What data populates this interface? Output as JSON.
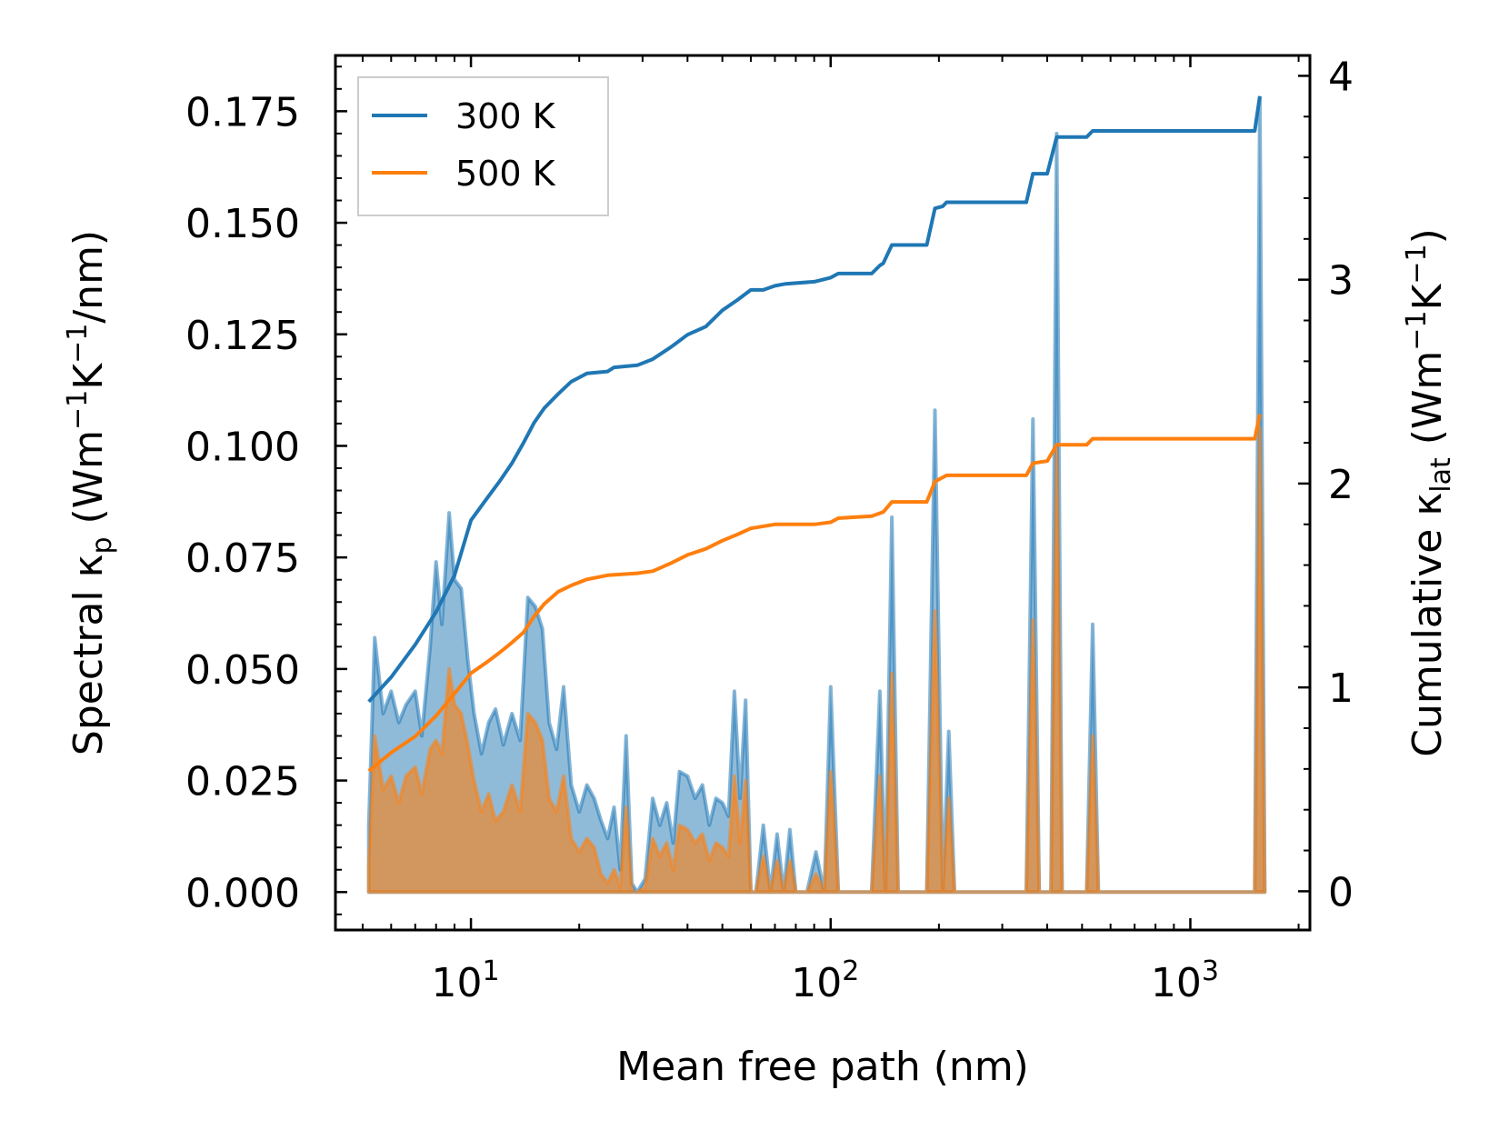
{
  "chart_data": {
    "type": "area+line (dual y-axis, log x)",
    "xlabel": "Mean free path (nm)",
    "xscale": "log",
    "xlim": [
      4.2,
      2150
    ],
    "x_ticks": [
      {
        "value": 10,
        "base": "10",
        "exp": "1"
      },
      {
        "value": 100,
        "base": "10",
        "exp": "2"
      },
      {
        "value": 1000,
        "base": "10",
        "exp": "3"
      }
    ],
    "ylabel_left": {
      "main": "Spectral κ",
      "sub": "p",
      "unit_a": " (Wm",
      "sup_a": "−1",
      "unit_b": "K",
      "sup_b": "−1",
      "unit_c": "/nm)"
    },
    "ylim_left": [
      -0.0085,
      0.1875
    ],
    "yticks_left": [
      "0.000",
      "0.025",
      "0.050",
      "0.075",
      "0.100",
      "0.125",
      "0.150",
      "0.175"
    ],
    "ylabel_right": {
      "main": "Cumulative κ",
      "sub": "lat",
      "unit_a": " (Wm",
      "sup_a": "−1",
      "unit_b": "K",
      "sup_b": "−1",
      "unit_c": ")"
    },
    "ylim_right": [
      -0.19,
      4.1
    ],
    "yticks_right": [
      "0",
      "1",
      "2",
      "3",
      "4"
    ],
    "legend": [
      {
        "label": "300 K",
        "color": "#1f77b4"
      },
      {
        "label": "500 K",
        "color": "#ff7f0e"
      }
    ],
    "legend_position": "top-left",
    "series": [
      {
        "name": "300 K",
        "color": "#1f77b4",
        "spectral": [
          [
            5.2,
            0.015
          ],
          [
            5.4,
            0.057
          ],
          [
            5.7,
            0.04
          ],
          [
            6.0,
            0.045
          ],
          [
            6.3,
            0.038
          ],
          [
            6.6,
            0.042
          ],
          [
            7.0,
            0.045
          ],
          [
            7.3,
            0.035
          ],
          [
            7.7,
            0.055
          ],
          [
            8.0,
            0.074
          ],
          [
            8.3,
            0.06
          ],
          [
            8.7,
            0.085
          ],
          [
            9.0,
            0.07
          ],
          [
            9.4,
            0.068
          ],
          [
            9.8,
            0.052
          ],
          [
            10.2,
            0.04
          ],
          [
            10.7,
            0.031
          ],
          [
            11.2,
            0.038
          ],
          [
            11.7,
            0.041
          ],
          [
            12.3,
            0.033
          ],
          [
            13.0,
            0.04
          ],
          [
            13.7,
            0.034
          ],
          [
            14.4,
            0.066
          ],
          [
            15.1,
            0.064
          ],
          [
            15.8,
            0.059
          ],
          [
            16.5,
            0.038
          ],
          [
            17.3,
            0.032
          ],
          [
            18.1,
            0.046
          ],
          [
            19.0,
            0.024
          ],
          [
            20.0,
            0.018
          ],
          [
            21.0,
            0.024
          ],
          [
            22.0,
            0.021
          ],
          [
            23.0,
            0.016
          ],
          [
            24.0,
            0.012
          ],
          [
            25.0,
            0.019
          ],
          [
            26.0,
            0.005
          ],
          [
            27.0,
            0.035
          ],
          [
            28.0,
            0.002
          ],
          [
            29.0,
            0.0
          ],
          [
            30.5,
            0.003
          ],
          [
            32.0,
            0.021
          ],
          [
            33.5,
            0.015
          ],
          [
            35.0,
            0.02
          ],
          [
            36.5,
            0.011
          ],
          [
            38.0,
            0.027
          ],
          [
            40.0,
            0.026
          ],
          [
            42.0,
            0.021
          ],
          [
            44.0,
            0.024
          ],
          [
            46.0,
            0.015
          ],
          [
            48.0,
            0.021
          ],
          [
            50.0,
            0.02
          ],
          [
            52.0,
            0.017
          ],
          [
            54.0,
            0.045
          ],
          [
            56.0,
            0.021
          ],
          [
            58.0,
            0.043
          ],
          [
            60.0,
            0.0
          ],
          [
            62.0,
            0.0
          ],
          [
            65.0,
            0.015
          ],
          [
            68.0,
            0.0
          ],
          [
            71.0,
            0.013
          ],
          [
            74.0,
            0.0
          ],
          [
            77.0,
            0.014
          ],
          [
            80.0,
            0.0
          ],
          [
            86.0,
            0.0
          ],
          [
            91.0,
            0.009
          ],
          [
            96.0,
            0.0
          ],
          [
            100.0,
            0.046
          ],
          [
            105.0,
            0.0
          ],
          [
            130.0,
            0.0
          ],
          [
            137.0,
            0.045
          ],
          [
            142.0,
            0.0
          ],
          [
            148.0,
            0.084
          ],
          [
            154.0,
            0.0
          ],
          [
            185.0,
            0.0
          ],
          [
            195.0,
            0.108
          ],
          [
            205.0,
            0.0
          ],
          [
            213.0,
            0.036
          ],
          [
            221.0,
            0.0
          ],
          [
            350.0,
            0.0
          ],
          [
            365.0,
            0.106
          ],
          [
            380.0,
            0.0
          ],
          [
            410.0,
            0.0
          ],
          [
            425.0,
            0.17
          ],
          [
            440.0,
            0.0
          ],
          [
            515.0,
            0.0
          ],
          [
            535.0,
            0.06
          ],
          [
            555.0,
            0.0
          ],
          [
            1510.0,
            0.0
          ],
          [
            1560.0,
            0.178
          ],
          [
            1610.0,
            0.0
          ]
        ],
        "cumulative": [
          [
            5.2,
            0.93
          ],
          [
            6.0,
            1.05
          ],
          [
            7.0,
            1.21
          ],
          [
            8.0,
            1.37
          ],
          [
            9.0,
            1.55
          ],
          [
            10.0,
            1.82
          ],
          [
            11.0,
            1.92
          ],
          [
            12.0,
            2.01
          ],
          [
            13.0,
            2.1
          ],
          [
            14.0,
            2.2
          ],
          [
            15.0,
            2.3
          ],
          [
            16.0,
            2.37
          ],
          [
            17.5,
            2.44
          ],
          [
            19.0,
            2.5
          ],
          [
            21.0,
            2.54
          ],
          [
            24.0,
            2.55
          ],
          [
            25.0,
            2.57
          ],
          [
            29.0,
            2.58
          ],
          [
            32.0,
            2.61
          ],
          [
            36.0,
            2.67
          ],
          [
            40.0,
            2.73
          ],
          [
            45.0,
            2.77
          ],
          [
            50.0,
            2.85
          ],
          [
            55.0,
            2.9
          ],
          [
            60.0,
            2.95
          ],
          [
            65.0,
            2.95
          ],
          [
            70.0,
            2.97
          ],
          [
            75.0,
            2.98
          ],
          [
            90.0,
            2.99
          ],
          [
            100.0,
            3.01
          ],
          [
            105.0,
            3.03
          ],
          [
            130.0,
            3.03
          ],
          [
            137.0,
            3.07
          ],
          [
            140.0,
            3.08
          ],
          [
            148.0,
            3.17
          ],
          [
            185.0,
            3.17
          ],
          [
            195.0,
            3.35
          ],
          [
            205.0,
            3.36
          ],
          [
            210.0,
            3.38
          ],
          [
            350.0,
            3.38
          ],
          [
            365.0,
            3.52
          ],
          [
            400.0,
            3.52
          ],
          [
            425.0,
            3.7
          ],
          [
            515.0,
            3.7
          ],
          [
            535.0,
            3.73
          ],
          [
            1510.0,
            3.73
          ],
          [
            1560.0,
            3.9
          ]
        ]
      },
      {
        "name": "500 K",
        "color": "#ff7f0e",
        "spectral": [
          [
            5.2,
            0.006
          ],
          [
            5.4,
            0.035
          ],
          [
            5.7,
            0.023
          ],
          [
            6.0,
            0.026
          ],
          [
            6.3,
            0.02
          ],
          [
            6.6,
            0.026
          ],
          [
            7.0,
            0.028
          ],
          [
            7.3,
            0.022
          ],
          [
            7.7,
            0.032
          ],
          [
            8.0,
            0.034
          ],
          [
            8.3,
            0.031
          ],
          [
            8.7,
            0.05
          ],
          [
            9.0,
            0.042
          ],
          [
            9.4,
            0.04
          ],
          [
            9.8,
            0.033
          ],
          [
            10.2,
            0.025
          ],
          [
            10.7,
            0.018
          ],
          [
            11.2,
            0.022
          ],
          [
            11.7,
            0.016
          ],
          [
            12.3,
            0.018
          ],
          [
            13.0,
            0.024
          ],
          [
            13.7,
            0.018
          ],
          [
            14.4,
            0.04
          ],
          [
            15.1,
            0.038
          ],
          [
            15.8,
            0.034
          ],
          [
            16.5,
            0.021
          ],
          [
            17.3,
            0.018
          ],
          [
            18.1,
            0.026
          ],
          [
            19.0,
            0.012
          ],
          [
            20.0,
            0.009
          ],
          [
            21.0,
            0.012
          ],
          [
            22.0,
            0.01
          ],
          [
            23.0,
            0.004
          ],
          [
            24.0,
            0.002
          ],
          [
            25.0,
            0.005
          ],
          [
            26.0,
            0.001
          ],
          [
            27.0,
            0.019
          ],
          [
            28.0,
            0.0
          ],
          [
            29.0,
            0.0
          ],
          [
            30.5,
            0.001
          ],
          [
            32.0,
            0.012
          ],
          [
            33.5,
            0.008
          ],
          [
            35.0,
            0.011
          ],
          [
            36.5,
            0.005
          ],
          [
            38.0,
            0.015
          ],
          [
            40.0,
            0.014
          ],
          [
            42.0,
            0.011
          ],
          [
            44.0,
            0.013
          ],
          [
            46.0,
            0.007
          ],
          [
            48.0,
            0.011
          ],
          [
            50.0,
            0.01
          ],
          [
            52.0,
            0.008
          ],
          [
            54.0,
            0.026
          ],
          [
            56.0,
            0.011
          ],
          [
            58.0,
            0.025
          ],
          [
            60.0,
            0.0
          ],
          [
            62.0,
            0.0
          ],
          [
            65.0,
            0.008
          ],
          [
            68.0,
            0.0
          ],
          [
            71.0,
            0.007
          ],
          [
            74.0,
            0.0
          ],
          [
            77.0,
            0.007
          ],
          [
            80.0,
            0.0
          ],
          [
            86.0,
            0.0
          ],
          [
            91.0,
            0.004
          ],
          [
            96.0,
            0.0
          ],
          [
            100.0,
            0.027
          ],
          [
            105.0,
            0.0
          ],
          [
            130.0,
            0.0
          ],
          [
            137.0,
            0.026
          ],
          [
            142.0,
            0.0
          ],
          [
            148.0,
            0.049
          ],
          [
            154.0,
            0.0
          ],
          [
            185.0,
            0.0
          ],
          [
            195.0,
            0.063
          ],
          [
            205.0,
            0.0
          ],
          [
            213.0,
            0.021
          ],
          [
            221.0,
            0.0
          ],
          [
            350.0,
            0.0
          ],
          [
            365.0,
            0.061
          ],
          [
            380.0,
            0.0
          ],
          [
            410.0,
            0.0
          ],
          [
            425.0,
            0.099
          ],
          [
            440.0,
            0.0
          ],
          [
            515.0,
            0.0
          ],
          [
            535.0,
            0.035
          ],
          [
            555.0,
            0.0
          ],
          [
            1510.0,
            0.0
          ],
          [
            1560.0,
            0.104
          ],
          [
            1610.0,
            0.0
          ]
        ],
        "cumulative": [
          [
            5.2,
            0.59
          ],
          [
            6.0,
            0.68
          ],
          [
            7.0,
            0.76
          ],
          [
            8.0,
            0.86
          ],
          [
            9.0,
            0.97
          ],
          [
            10.0,
            1.07
          ],
          [
            11.0,
            1.12
          ],
          [
            12.0,
            1.17
          ],
          [
            13.0,
            1.22
          ],
          [
            14.0,
            1.27
          ],
          [
            15.0,
            1.35
          ],
          [
            16.0,
            1.41
          ],
          [
            17.5,
            1.47
          ],
          [
            19.0,
            1.5
          ],
          [
            21.0,
            1.53
          ],
          [
            24.0,
            1.55
          ],
          [
            29.0,
            1.56
          ],
          [
            32.0,
            1.57
          ],
          [
            36.0,
            1.61
          ],
          [
            40.0,
            1.65
          ],
          [
            45.0,
            1.68
          ],
          [
            50.0,
            1.72
          ],
          [
            55.0,
            1.75
          ],
          [
            60.0,
            1.78
          ],
          [
            70.0,
            1.8
          ],
          [
            90.0,
            1.8
          ],
          [
            100.0,
            1.81
          ],
          [
            105.0,
            1.83
          ],
          [
            130.0,
            1.84
          ],
          [
            140.0,
            1.86
          ],
          [
            148.0,
            1.91
          ],
          [
            185.0,
            1.91
          ],
          [
            195.0,
            2.01
          ],
          [
            210.0,
            2.04
          ],
          [
            350.0,
            2.04
          ],
          [
            365.0,
            2.1
          ],
          [
            400.0,
            2.11
          ],
          [
            425.0,
            2.19
          ],
          [
            515.0,
            2.19
          ],
          [
            535.0,
            2.22
          ],
          [
            1510.0,
            2.22
          ],
          [
            1560.0,
            2.34
          ]
        ]
      }
    ]
  }
}
